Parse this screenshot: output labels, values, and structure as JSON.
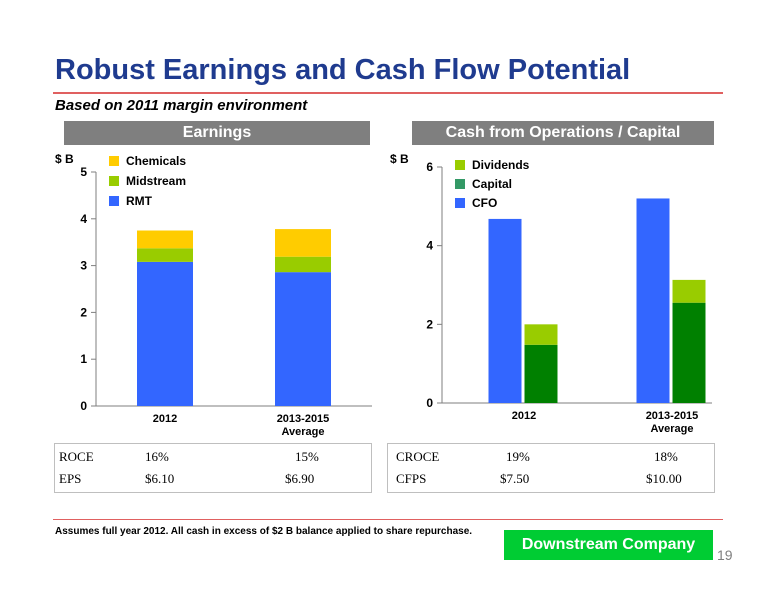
{
  "title": "Robust Earnings and Cash Flow Potential",
  "subtitle": "Based on 2011 margin environment",
  "chart_data": [
    {
      "type": "bar",
      "stacked": true,
      "banner": "Earnings",
      "unit_label": "$ B",
      "categories": [
        [
          "2012"
        ],
        [
          "2013-2015",
          "Average"
        ]
      ],
      "ylim": [
        0,
        5
      ],
      "yticks": [
        0,
        1,
        2,
        3,
        4,
        5
      ],
      "series": [
        {
          "name": "RMT",
          "color": "#3366ff",
          "values": [
            3.08,
            2.86
          ]
        },
        {
          "name": "Midstream",
          "color": "#99cc00",
          "values": [
            0.29,
            0.33
          ]
        },
        {
          "name": "Chemicals",
          "color": "#ffcc00",
          "values": [
            0.38,
            0.59
          ]
        }
      ],
      "legend_order": [
        "Chemicals",
        "Midstream",
        "RMT"
      ]
    },
    {
      "type": "bar",
      "stacked": true,
      "banner": "Cash from Operations / Capital Program",
      "unit_label": "$ B",
      "categories": [
        [
          "2012"
        ],
        [
          "2013-2015",
          "Average"
        ]
      ],
      "ylim": [
        0,
        6
      ],
      "yticks": [
        0,
        2,
        4,
        6
      ],
      "bars": [
        {
          "category": 0,
          "slot": 0,
          "segments": [
            {
              "series": "CFO",
              "value": 4.68
            }
          ]
        },
        {
          "category": 0,
          "slot": 1,
          "segments": [
            {
              "series": "Capital",
              "value": 1.48
            },
            {
              "series": "Dividends",
              "value": 0.52
            }
          ]
        },
        {
          "category": 1,
          "slot": 0,
          "segments": [
            {
              "series": "CFO",
              "value": 5.2
            }
          ]
        },
        {
          "category": 1,
          "slot": 1,
          "segments": [
            {
              "series": "Capital",
              "value": 2.55
            },
            {
              "series": "Dividends",
              "value": 0.58
            }
          ]
        }
      ],
      "series": [
        {
          "name": "Dividends",
          "color": "#99cc00"
        },
        {
          "name": "Capital",
          "color": "#339966"
        },
        {
          "name": "CFO",
          "color": "#3366ff"
        }
      ],
      "capital_bar_color": "#008000"
    }
  ],
  "metrics_left": [
    {
      "label": "ROCE",
      "v1": "16%",
      "v2": "15%"
    },
    {
      "label": "EPS",
      "v1": "$6.10",
      "v2": "$6.90"
    }
  ],
  "metrics_right": [
    {
      "label": "CROCE",
      "v1": "19%",
      "v2": "18%"
    },
    {
      "label": "CFPS",
      "v1": "$7.50",
      "v2": "$10.00"
    }
  ],
  "footnote": "Assumes full year 2012.  All cash in excess of $2 B balance applied to share repurchase.",
  "footer_badge": "Downstream Company",
  "page_number": "19"
}
